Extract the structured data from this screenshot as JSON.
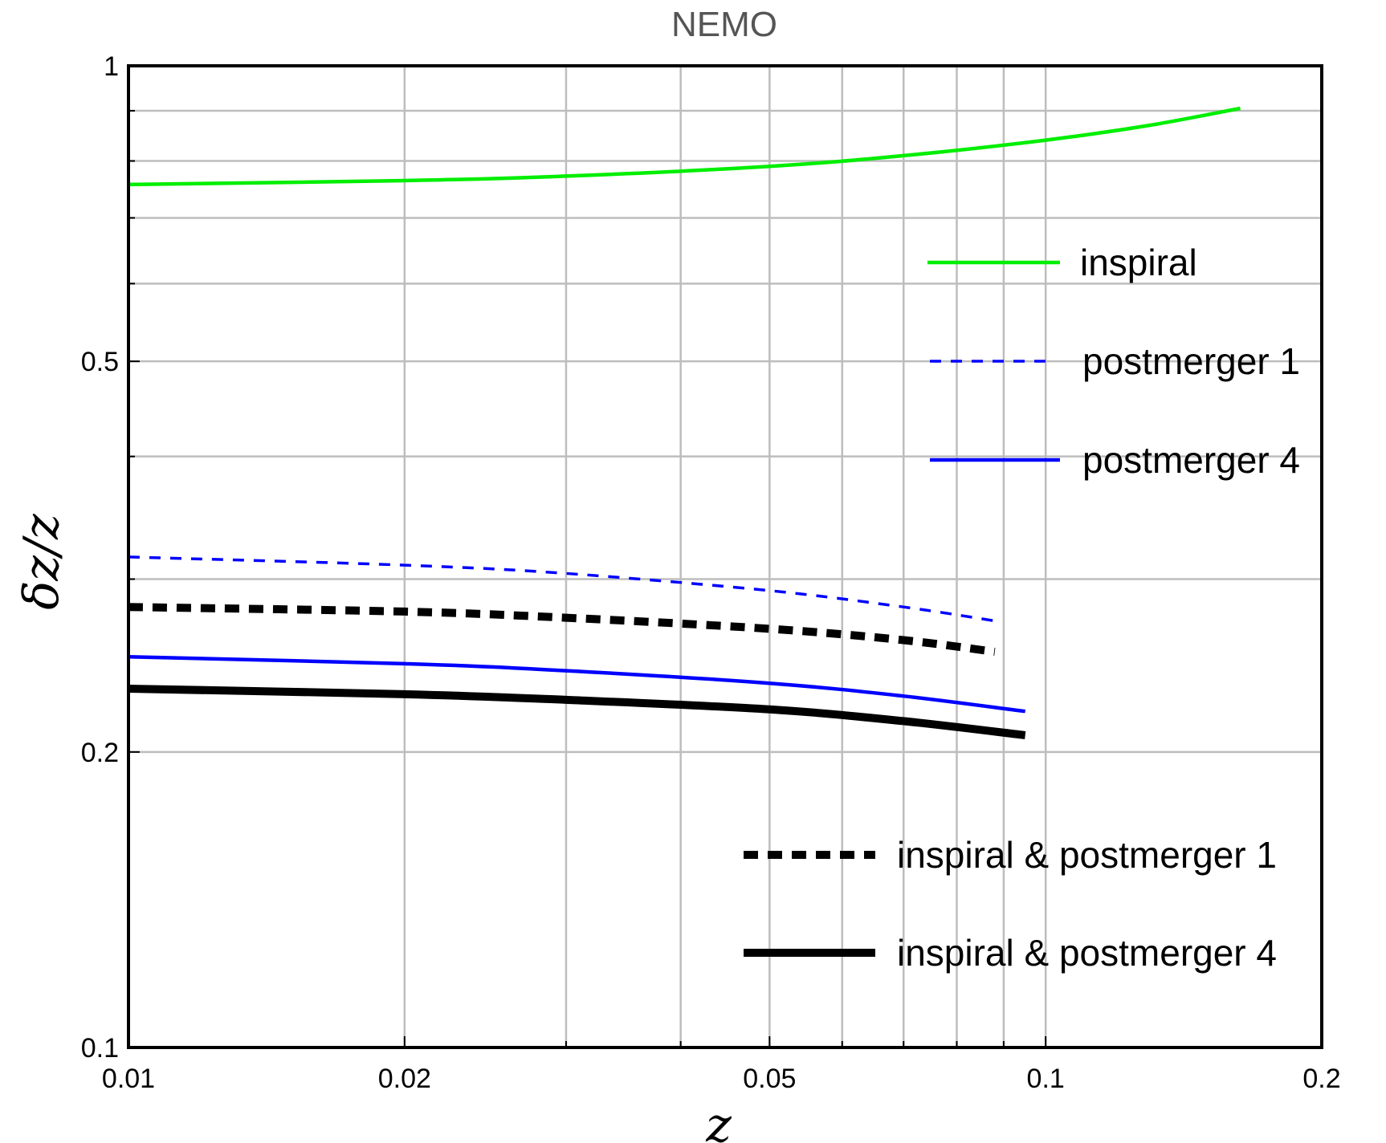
{
  "chart_data": {
    "type": "line",
    "title": "NEMO",
    "xlabel": "z",
    "ylabel": "δz/z",
    "x_scale": "log",
    "y_scale": "log",
    "xlim": [
      0.01,
      0.2
    ],
    "ylim": [
      0.1,
      1
    ],
    "x_ticks": [
      0.01,
      0.02,
      0.05,
      0.1,
      0.2
    ],
    "x_tick_labels": [
      "0.01",
      "0.02",
      "0.05",
      "0.1",
      "0.2"
    ],
    "y_ticks": [
      0.1,
      0.2,
      0.5,
      1
    ],
    "y_tick_labels": [
      "0.1",
      "0.2",
      "0.5",
      "1"
    ],
    "grid": true,
    "legend_placement": "right",
    "series": [
      {
        "name": "inspiral",
        "color": "#00ee00",
        "style": "solid",
        "x": [
          0.01,
          0.02,
          0.03,
          0.05,
          0.07,
          0.1,
          0.13,
          0.163
        ],
        "y": [
          0.757,
          0.764,
          0.772,
          0.79,
          0.81,
          0.84,
          0.87,
          0.905
        ]
      },
      {
        "name": "postmerger 1",
        "color": "#0000ff",
        "style": "dashed",
        "x": [
          0.01,
          0.02,
          0.03,
          0.05,
          0.07,
          0.088
        ],
        "y": [
          0.316,
          0.31,
          0.304,
          0.292,
          0.281,
          0.272
        ]
      },
      {
        "name": "postmerger 4",
        "color": "#0000ff",
        "style": "solid",
        "x": [
          0.01,
          0.02,
          0.03,
          0.05,
          0.07,
          0.095
        ],
        "y": [
          0.25,
          0.246,
          0.242,
          0.235,
          0.228,
          0.22
        ]
      },
      {
        "name": "inspiral & postmerger 1",
        "color": "#000000",
        "style": "dotted-thick",
        "x": [
          0.01,
          0.02,
          0.03,
          0.05,
          0.07,
          0.088
        ],
        "y": [
          0.281,
          0.278,
          0.274,
          0.267,
          0.26,
          0.253
        ]
      },
      {
        "name": "inspiral & postmerger 4",
        "color": "#000000",
        "style": "solid-thick",
        "x": [
          0.01,
          0.02,
          0.03,
          0.05,
          0.07,
          0.095
        ],
        "y": [
          0.232,
          0.229,
          0.226,
          0.221,
          0.215,
          0.208
        ]
      }
    ]
  }
}
